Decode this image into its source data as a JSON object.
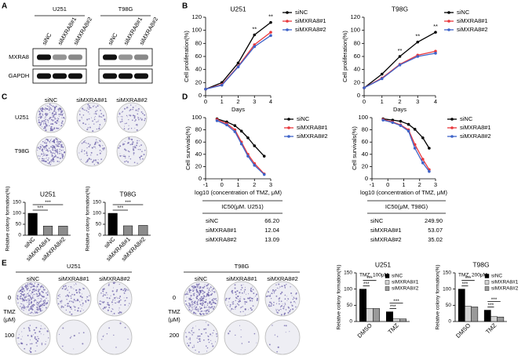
{
  "panel_labels": [
    "A",
    "B",
    "C",
    "D",
    "E"
  ],
  "western": {
    "cell_lines": [
      "U251",
      "T98G"
    ],
    "lanes": [
      "siNC",
      "siMXRA8#1",
      "siMXRA8#2"
    ],
    "proteins": [
      "MXRA8",
      "GAPDH"
    ]
  },
  "colony_c": {
    "columns": [
      "siNC",
      "siMXRA8#1",
      "siMXRA8#2"
    ],
    "rows": [
      "U251",
      "T98G"
    ]
  },
  "ic50_tables": [
    {
      "header": "IC50(μM. U251)",
      "rows": [
        [
          "siNC",
          "66.20"
        ],
        [
          "siMXRA8#1",
          "12.04"
        ],
        [
          "siMXRA8#2",
          "13.09"
        ]
      ]
    },
    {
      "header": "IC50(μM, T98G)",
      "rows": [
        [
          "siNC",
          "249.90"
        ],
        [
          "siMXRA8#1",
          "53.07"
        ],
        [
          "siMXRA8#2",
          "35.02"
        ]
      ]
    }
  ],
  "colony_e": {
    "groups": [
      {
        "title": "U251",
        "columns": [
          "siNC",
          "siMXRA8#1",
          "siMXRA8#2"
        ],
        "row_label": "TMZ",
        "row_unit": "(μM)",
        "rows": [
          "0",
          "100"
        ]
      },
      {
        "title": "T98G",
        "columns": [
          "siNC",
          "siMXRA8#1",
          "siMXRA8#2"
        ],
        "row_label": "TMZ",
        "row_unit": "(μM)",
        "rows": [
          "0",
          "200"
        ]
      }
    ]
  },
  "chart_data": [
    {
      "type": "line",
      "title": "U251",
      "xlabel": "Days",
      "ylabel": "Cell proliferation(%)",
      "x": [
        0,
        1,
        2,
        3,
        4
      ],
      "xlim": [
        0,
        4
      ],
      "xticks": [
        0,
        1,
        2,
        3,
        4
      ],
      "ylim": [
        0,
        120
      ],
      "yticks": [
        0,
        20,
        40,
        60,
        80,
        100,
        120
      ],
      "series": [
        {
          "name": "siNC",
          "color": "#000000",
          "values": [
            10,
            20,
            50,
            93,
            112
          ]
        },
        {
          "name": "siMXRA8#1",
          "color": "#e8383d",
          "values": [
            10,
            17,
            45,
            78,
            97
          ]
        },
        {
          "name": "siMXRA8#2",
          "color": "#3f63c8",
          "values": [
            10,
            16,
            44,
            75,
            92
          ]
        }
      ],
      "annotations": [
        {
          "text": "**",
          "x": 3
        },
        {
          "text": "**",
          "x": 4
        }
      ]
    },
    {
      "type": "line",
      "title": "T98G",
      "xlabel": "Days",
      "ylabel": "Cell proliferation(%)",
      "x": [
        0,
        1,
        2,
        3,
        4
      ],
      "xlim": [
        0,
        4
      ],
      "xticks": [
        0,
        1,
        2,
        3,
        4
      ],
      "ylim": [
        0,
        120
      ],
      "yticks": [
        0,
        20,
        40,
        60,
        80,
        100,
        120
      ],
      "series": [
        {
          "name": "siNC",
          "color": "#000000",
          "values": [
            12,
            33,
            60,
            82,
            97
          ]
        },
        {
          "name": "siMXRA8#1",
          "color": "#e8383d",
          "values": [
            12,
            27,
            48,
            62,
            68
          ]
        },
        {
          "name": "siMXRA8#2",
          "color": "#3f63c8",
          "values": [
            12,
            26,
            47,
            60,
            65
          ]
        }
      ],
      "annotations": [
        {
          "text": "**",
          "x": 2
        },
        {
          "text": "**",
          "x": 3
        },
        {
          "text": "**",
          "x": 4
        }
      ]
    },
    {
      "type": "bar",
      "title": "U251",
      "ylabel": "Relative colony formation(%)",
      "categories": [
        "siNC",
        "siMXRA8#1",
        "siMXRA8#2"
      ],
      "values": [
        100,
        42,
        42
      ],
      "colors": [
        "#000000",
        "#8c8c8c",
        "#8c8c8c"
      ],
      "ylim": [
        0,
        150
      ],
      "yticks": [
        0,
        50,
        100,
        150
      ],
      "annotations": [
        "***",
        "***"
      ]
    },
    {
      "type": "bar",
      "title": "T98G",
      "ylabel": "Relative colony formation(%)",
      "categories": [
        "siNC",
        "siMXRA8#1",
        "siMXRA8#2"
      ],
      "values": [
        100,
        43,
        45
      ],
      "colors": [
        "#000000",
        "#8c8c8c",
        "#8c8c8c"
      ],
      "ylim": [
        0,
        150
      ],
      "yticks": [
        0,
        50,
        100,
        150
      ],
      "annotations": [
        "***",
        "***"
      ]
    },
    {
      "type": "line",
      "xlabel": "log10 (concentration of TMZ, μM)",
      "ylabel": "Cell survivals(%)",
      "x": [
        -0.3,
        0.3,
        0.8,
        1.2,
        1.6,
        2.0,
        2.6
      ],
      "xlim": [
        -1,
        3
      ],
      "xticks": [
        -1,
        0,
        1,
        2,
        3
      ],
      "ylim": [
        0,
        100
      ],
      "yticks": [
        0,
        20,
        40,
        60,
        80,
        100
      ],
      "series": [
        {
          "name": "siNC",
          "color": "#000000",
          "values": [
            98,
            93,
            87,
            78,
            67,
            54,
            37
          ]
        },
        {
          "name": "siMXRA8#1",
          "color": "#e8383d",
          "values": [
            97,
            90,
            80,
            60,
            40,
            25,
            8
          ]
        },
        {
          "name": "siMXRA8#2",
          "color": "#3f63c8",
          "values": [
            95,
            88,
            77,
            57,
            37,
            22,
            7
          ]
        }
      ]
    },
    {
      "type": "line",
      "xlabel": "log10 (concentration of TMZ, μM)",
      "ylabel": "Cell survivals(%)",
      "x": [
        -0.3,
        0.3,
        0.8,
        1.3,
        1.7,
        2.2,
        2.6
      ],
      "xlim": [
        -1,
        3
      ],
      "xticks": [
        -1,
        0,
        1,
        2,
        3
      ],
      "ylim": [
        0,
        100
      ],
      "yticks": [
        0,
        20,
        40,
        60,
        80,
        100
      ],
      "series": [
        {
          "name": "siNC",
          "color": "#000000",
          "values": [
            98,
            96,
            94,
            89,
            81,
            67,
            50
          ]
        },
        {
          "name": "siMXRA8#1",
          "color": "#e8383d",
          "values": [
            97,
            93,
            88,
            80,
            56,
            32,
            15
          ]
        },
        {
          "name": "siMXRA8#2",
          "color": "#3f63c8",
          "values": [
            96,
            92,
            87,
            78,
            50,
            26,
            12
          ]
        }
      ]
    },
    {
      "type": "bar",
      "title": "U251",
      "subtitle": "TMZ, 100μM",
      "ylabel": "Relative colony formation(%)",
      "categories": [
        "DMSO",
        "TMZ"
      ],
      "ylim": [
        0,
        150
      ],
      "yticks": [
        0,
        50,
        100,
        150
      ],
      "series": [
        {
          "name": "siNC",
          "color": "#000000",
          "values": [
            100,
            30
          ]
        },
        {
          "name": "siMXRA8#1",
          "color": "#d4d4d4",
          "values": [
            40,
            8
          ]
        },
        {
          "name": "siMXRA8#2",
          "color": "#9a9a9a",
          "values": [
            40,
            8
          ]
        }
      ],
      "annotations": [
        "***",
        "***",
        "***",
        "***"
      ]
    },
    {
      "type": "bar",
      "title": "T98G",
      "subtitle": "TMZ, 200μM",
      "ylabel": "Relative colony formation(%)",
      "categories": [
        "DMSO",
        "TMZ"
      ],
      "ylim": [
        0,
        150
      ],
      "yticks": [
        0,
        50,
        100,
        150
      ],
      "series": [
        {
          "name": "siNC",
          "color": "#000000",
          "values": [
            100,
            35
          ]
        },
        {
          "name": "siMXRA8#1",
          "color": "#d4d4d4",
          "values": [
            47,
            15
          ]
        },
        {
          "name": "siMXRA8#2",
          "color": "#9a9a9a",
          "values": [
            45,
            14
          ]
        }
      ],
      "annotations": [
        "***",
        "***",
        "***",
        "***"
      ]
    }
  ]
}
